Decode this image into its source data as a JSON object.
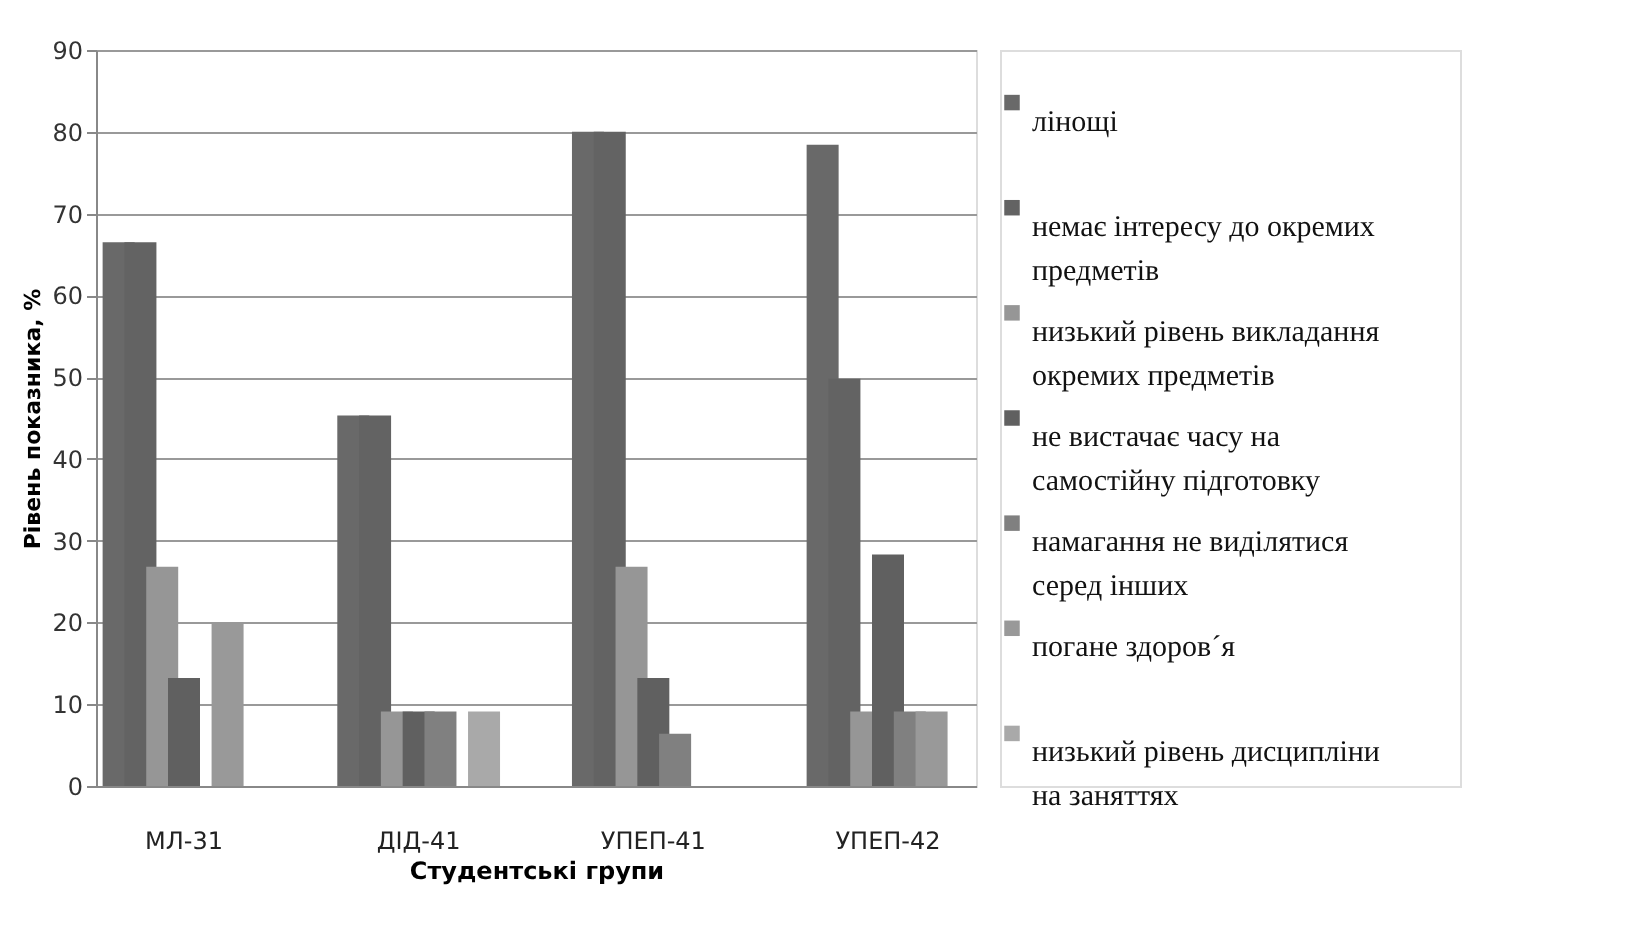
{
  "chart_data": {
    "type": "bar",
    "xlabel": "Студентські групи",
    "ylabel": "Рівень показника, %",
    "categories": [
      "МЛ-31",
      "ДІД-41",
      "УПЕП-41",
      "УПЕП-42"
    ],
    "ylim": [
      0,
      90
    ],
    "yticks": [
      0,
      10,
      20,
      30,
      40,
      50,
      60,
      70,
      80,
      90
    ],
    "grid": "y",
    "legend": "right",
    "series": [
      {
        "name": "лінощі",
        "color": "#696969",
        "values": [
          66.5,
          45.3,
          80,
          78.4
        ]
      },
      {
        "name": "немає інтересу до окремих предметів",
        "color": "#636363",
        "values": [
          66.5,
          45.3,
          80,
          49.8
        ]
      },
      {
        "name": "низький рівень викладання окремих предметів",
        "color": "#969696",
        "values": [
          26.8,
          9.1,
          26.8,
          9.1
        ]
      },
      {
        "name": "не вистачає часу на самостійну підготовку",
        "color": "#606060",
        "values": [
          13.2,
          9.1,
          13.2,
          28.3
        ]
      },
      {
        "name": "намагання не виділятися серед інших",
        "color": "#808080",
        "values": [
          0,
          9.1,
          6.4,
          9.1
        ]
      },
      {
        "name": "погане здоров´я",
        "color": "#999999",
        "values": [
          19.9,
          0,
          0,
          9.1
        ]
      },
      {
        "name": "низький рівень дисципліни на заняттях",
        "color": "#a9a9a9",
        "values": [
          0,
          9.1,
          0,
          0
        ]
      }
    ]
  }
}
